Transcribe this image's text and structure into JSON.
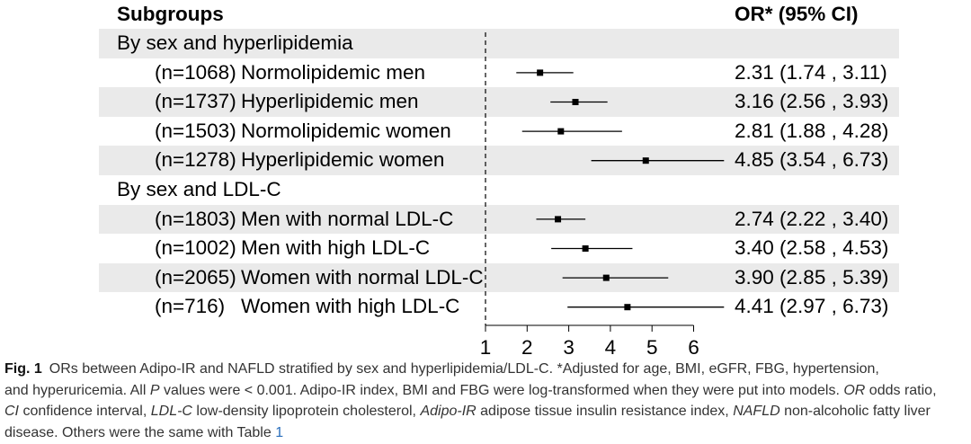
{
  "chart_data": {
    "type": "scatter",
    "header": {
      "label_column": "Subgroups",
      "value_column": "OR* (95% CI)"
    },
    "groups": [
      {
        "title": "By sex and hyperlipidemia",
        "rows": [
          {
            "n": "(n=1068)",
            "label": "Normolipidemic men",
            "or": 2.31,
            "ci_low": 1.74,
            "ci_high": 3.11,
            "or_text": "2.31 (1.74 , 3.11)"
          },
          {
            "n": "(n=1737)",
            "label": "Hyperlipidemic men",
            "or": 3.16,
            "ci_low": 2.56,
            "ci_high": 3.93,
            "or_text": "3.16 (2.56 , 3.93)"
          },
          {
            "n": "(n=1503)",
            "label": "Normolipidemic women",
            "or": 2.81,
            "ci_low": 1.88,
            "ci_high": 4.28,
            "or_text": "2.81 (1.88 , 4.28)"
          },
          {
            "n": "(n=1278)",
            "label": "Hyperlipidemic women",
            "or": 4.85,
            "ci_low": 3.54,
            "ci_high": 6.73,
            "or_text": "4.85 (3.54 , 6.73)"
          }
        ]
      },
      {
        "title": "By sex and LDL-C",
        "rows": [
          {
            "n": "(n=1803)",
            "label": "Men with normal LDL-C",
            "or": 2.74,
            "ci_low": 2.22,
            "ci_high": 3.4,
            "or_text": "2.74 (2.22 , 3.40)"
          },
          {
            "n": "(n=1002)",
            "label": "Men with high LDL-C",
            "or": 3.4,
            "ci_low": 2.58,
            "ci_high": 4.53,
            "or_text": "3.40 (2.58 , 4.53)"
          },
          {
            "n": "(n=2065)",
            "label": "Women with normal LDL-C",
            "or": 3.9,
            "ci_low": 2.85,
            "ci_high": 5.39,
            "or_text": "3.90 (2.85 , 5.39)"
          },
          {
            "n": "(n=716)",
            "label": "Women with high LDL-C",
            "or": 4.41,
            "ci_low": 2.97,
            "ci_high": 6.73,
            "or_text": "4.41 (2.97 , 6.73)"
          }
        ]
      }
    ],
    "x_ticks": [
      1,
      2,
      3,
      4,
      5,
      6
    ],
    "xlim": [
      1,
      6
    ],
    "reference_line": 1
  },
  "caption": {
    "label": "Fig. 1",
    "segments": [
      "ORs between Adipo-IR and NAFLD stratified by sex and hyperlipidemia/LDL-C. *Adjusted for age, BMI, eGFR, FBG, hypertension,",
      "and hyperuricemia. All ",
      "P",
      " values were < 0.001. Adipo-IR index, BMI and FBG were log-transformed when they were put into models. ",
      "OR",
      " odds ratio,",
      "CI",
      " confidence interval, ",
      "LDL-C",
      " low-density lipoprotein cholesterol, ",
      "Adipo-IR",
      " adipose tissue insulin resistance index, ",
      "NAFLD",
      " non-alcoholic fatty liver",
      "disease. Others were the same with Table ",
      "1"
    ]
  },
  "colors": {
    "band": "#eaeaea",
    "marks": "#000000",
    "caption": "#333333",
    "link": "#2a6ebb"
  }
}
